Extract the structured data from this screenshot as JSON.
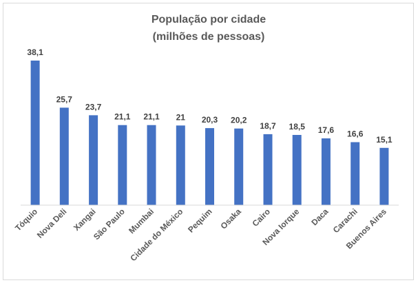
{
  "chart_data": {
    "type": "bar",
    "title_lines": [
      "População por cidade",
      "(milhões de pessoas)"
    ],
    "categories": [
      "Tóquio",
      "Nova Deli",
      "Xangai",
      "São Paulo",
      "Mumbai",
      "Cidade do México",
      "Pequim",
      "Osaka",
      "Cairo",
      "Nova Iorque",
      "Daca",
      "Carachi",
      "Buenos Aires"
    ],
    "values": [
      38.1,
      25.7,
      23.7,
      21.1,
      21.1,
      21,
      20.3,
      20.2,
      18.7,
      18.5,
      17.6,
      16.6,
      15.1
    ],
    "data_labels": [
      "38,1",
      "25,7",
      "23,7",
      "21,1",
      "21,1",
      "21",
      "20,3",
      "20,2",
      "18,7",
      "18,5",
      "17,6",
      "16,6",
      "15,1"
    ],
    "xlabel": "",
    "ylabel": "",
    "ylim": [
      0,
      45
    ],
    "grid": false,
    "legend": "none",
    "bar_color": "#4472c4",
    "axis_color": "#d9d9d9"
  }
}
